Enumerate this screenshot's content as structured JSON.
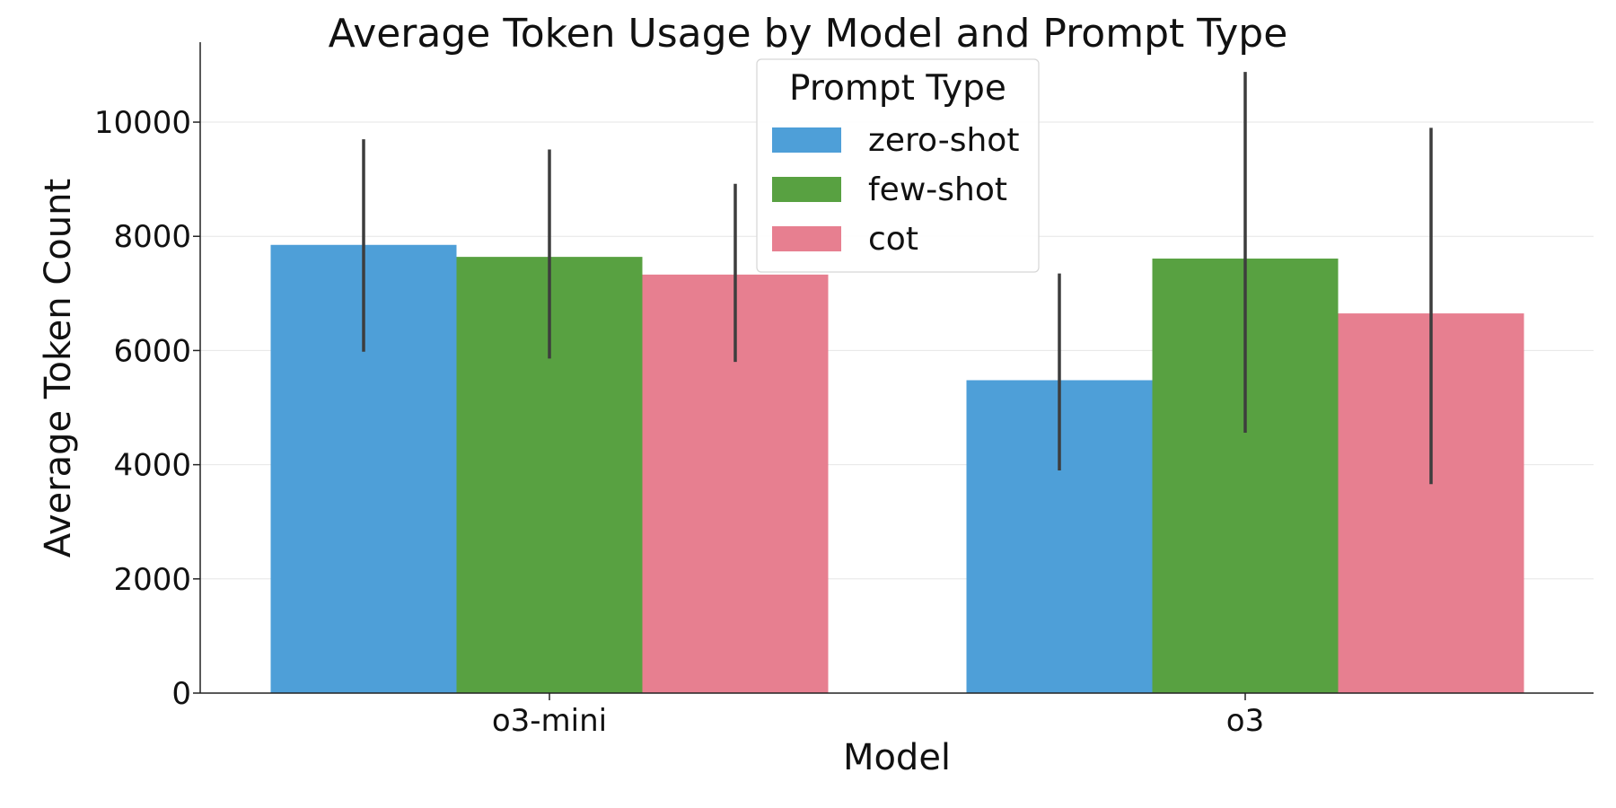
{
  "chart_data": {
    "type": "bar",
    "title": "Average Token Usage by Model and Prompt Type",
    "xlabel": "Model",
    "ylabel": "Average Token Count",
    "categories": [
      "o3-mini",
      "o3"
    ],
    "ylim": [
      0,
      11400
    ],
    "yticks": [
      0,
      2000,
      4000,
      6000,
      8000,
      10000
    ],
    "grid": "horizontal",
    "legend": {
      "title": "Prompt Type",
      "placement": "top-center"
    },
    "series": [
      {
        "name": "zero-shot",
        "color": "#4e9fd8",
        "values": [
          7850,
          5480
        ],
        "error_low": [
          5980,
          3900
        ],
        "error_high": [
          9700,
          7350
        ]
      },
      {
        "name": "few-shot",
        "color": "#58a141",
        "values": [
          7640,
          7610
        ],
        "error_low": [
          5860,
          4560
        ],
        "error_high": [
          9520,
          10880
        ]
      },
      {
        "name": "cot",
        "color": "#e77f90",
        "values": [
          7330,
          6650
        ],
        "error_low": [
          5800,
          3660
        ],
        "error_high": [
          8920,
          9900
        ]
      }
    ]
  }
}
